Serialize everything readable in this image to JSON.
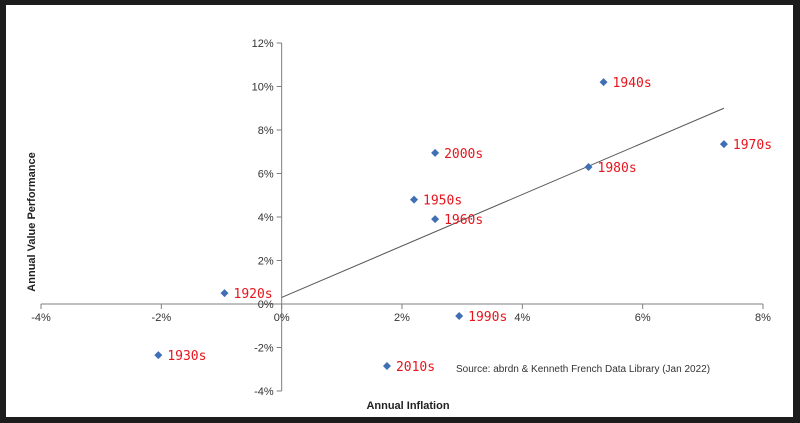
{
  "chart_data": {
    "type": "scatter",
    "xlabel": "Annual Inflation",
    "ylabel": "Annual Value Performance",
    "xlim": [
      -4,
      8
    ],
    "ylim": [
      -4,
      12
    ],
    "x_ticks": [
      "-4%",
      "-2%",
      "0%",
      "2%",
      "4%",
      "6%",
      "8%"
    ],
    "y_ticks": [
      "-4%",
      "-2%",
      "0%",
      "2%",
      "4%",
      "6%",
      "8%",
      "10%",
      "12%"
    ],
    "points": [
      {
        "label": "1920s",
        "x": -0.95,
        "y": 0.5
      },
      {
        "label": "1930s",
        "x": -2.05,
        "y": -2.35
      },
      {
        "label": "1940s",
        "x": 5.35,
        "y": 10.2
      },
      {
        "label": "1950s",
        "x": 2.2,
        "y": 4.8
      },
      {
        "label": "1960s",
        "x": 2.55,
        "y": 3.9
      },
      {
        "label": "1970s",
        "x": 7.35,
        "y": 7.35
      },
      {
        "label": "1980s",
        "x": 5.1,
        "y": 6.3
      },
      {
        "label": "1990s",
        "x": 2.95,
        "y": -0.55
      },
      {
        "label": "2000s",
        "x": 2.55,
        "y": 6.95
      },
      {
        "label": "2010s",
        "x": 1.75,
        "y": -2.85
      }
    ],
    "trendline": {
      "x": [
        0,
        7.35
      ],
      "y": [
        0.3,
        9.0
      ]
    },
    "marker_color": "#3f6fb5",
    "label_color": "#e8141c",
    "grid": false,
    "legend": "none",
    "source_note": "Source: abrdn & Kenneth French Data Library (Jan 2022)"
  }
}
